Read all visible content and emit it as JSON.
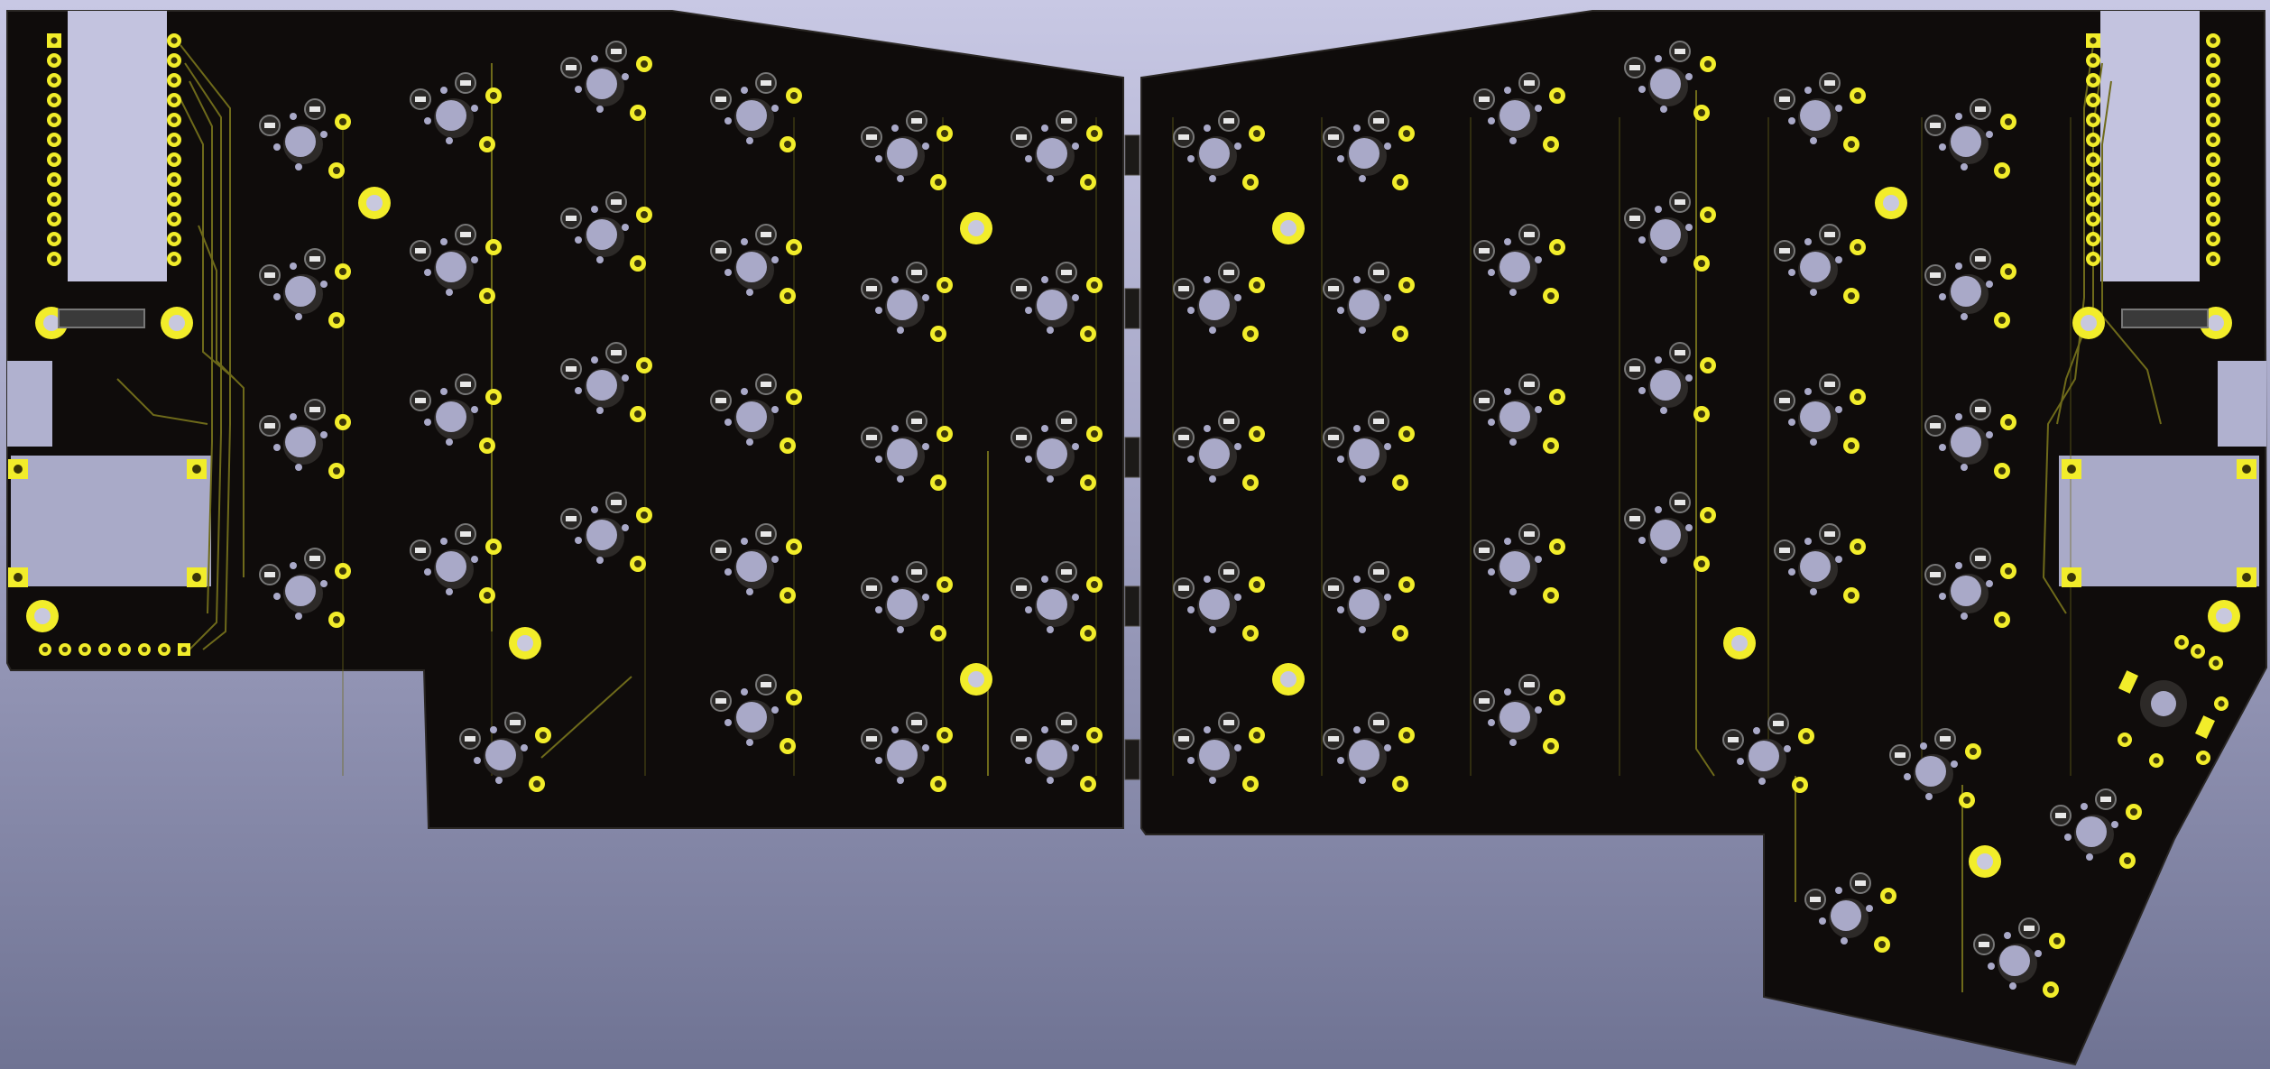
{
  "viewer": {
    "background_top": "#c8c8e4",
    "background_bottom": "#6f7393"
  },
  "board": {
    "substrate_color": "#0f0c0b",
    "pad_color": "#f2ed2a",
    "pad_ring_dark": "#3a3608",
    "hole_color": "#a9a9c8",
    "trace_color": "#6e6a1a",
    "socket_color": "#2a2826",
    "halves": [
      "left-half",
      "right-half"
    ]
  },
  "icons": {
    "switch_footprint": "switch-footprint-icon",
    "mounting_hole": "mounting-hole-icon",
    "header_pin": "header-pin-icon"
  }
}
